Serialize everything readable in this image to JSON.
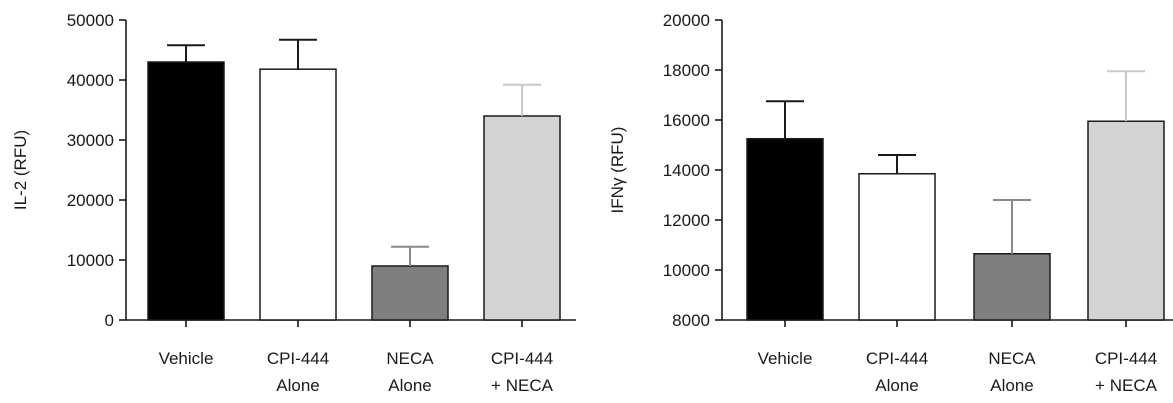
{
  "chart_data": [
    {
      "type": "bar",
      "ylabel": "IL-2 (RFU)",
      "ylim": [
        0,
        50000
      ],
      "yticks": [
        "0",
        "10000",
        "20000",
        "30000",
        "40000",
        "50000"
      ],
      "categories": [
        [
          "Vehicle"
        ],
        [
          "CPI-444",
          "Alone"
        ],
        [
          "NECA",
          "Alone"
        ],
        [
          "CPI-444",
          "+ NECA"
        ]
      ],
      "values": [
        43000,
        41800,
        9000,
        34000
      ],
      "errors": [
        2800,
        4900,
        3200,
        5200
      ],
      "colors": [
        "#000000",
        "#ffffff",
        "#7f7f7f",
        "#d3d3d3"
      ],
      "grid": false
    },
    {
      "type": "bar",
      "ylabel": "IFNγ (RFU)",
      "ylim": [
        8000,
        20000
      ],
      "yticks": [
        "8000",
        "10000",
        "12000",
        "14000",
        "16000",
        "18000",
        "20000"
      ],
      "categories": [
        [
          "Vehicle"
        ],
        [
          "CPI-444",
          "Alone"
        ],
        [
          "NECA",
          "Alone"
        ],
        [
          "CPI-444",
          "+ NECA"
        ]
      ],
      "values": [
        15250,
        13850,
        10650,
        15950
      ],
      "errors": [
        1500,
        750,
        2150,
        2000
      ],
      "colors": [
        "#000000",
        "#ffffff",
        "#7f7f7f",
        "#d3d3d3"
      ],
      "grid": false
    }
  ]
}
